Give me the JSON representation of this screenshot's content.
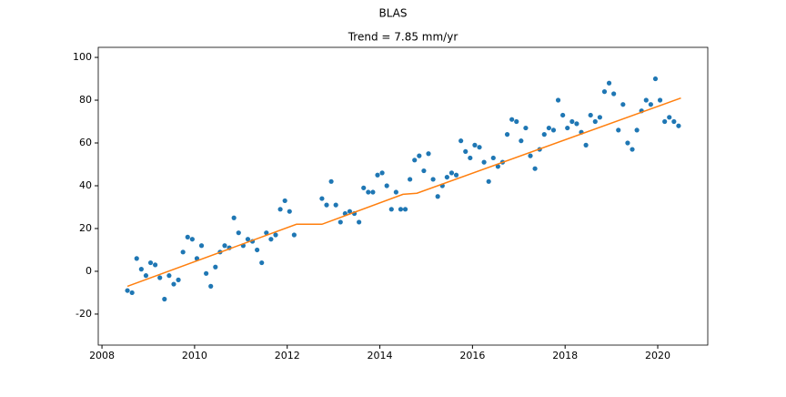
{
  "chart_data": {
    "type": "scatter",
    "title": "BLAS",
    "subtitle": "Trend = 7.85 mm/yr",
    "xlim": [
      2007.92,
      2021.08
    ],
    "ylim": [
      -34.5,
      104.7
    ],
    "xticks": [
      2008,
      2010,
      2012,
      2014,
      2016,
      2018,
      2020
    ],
    "yticks": [
      -20,
      0,
      20,
      40,
      60,
      80,
      100
    ],
    "series": [
      {
        "type": "scatter",
        "color": "#1f77b4",
        "x": [
          2008.55,
          2008.65,
          2008.75,
          2008.85,
          2008.95,
          2009.05,
          2009.15,
          2009.25,
          2009.35,
          2009.45,
          2009.55,
          2009.65,
          2009.75,
          2009.85,
          2009.95,
          2010.05,
          2010.15,
          2010.25,
          2010.35,
          2010.45,
          2010.55,
          2010.65,
          2010.75,
          2010.85,
          2010.95,
          2011.05,
          2011.15,
          2011.25,
          2011.35,
          2011.45,
          2011.55,
          2011.65,
          2011.75,
          2011.85,
          2011.95,
          2012.05,
          2012.15,
          2012.75,
          2012.85,
          2012.95,
          2013.05,
          2013.15,
          2013.25,
          2013.35,
          2013.45,
          2013.55,
          2013.65,
          2013.75,
          2013.85,
          2013.95,
          2014.05,
          2014.15,
          2014.25,
          2014.35,
          2014.45,
          2014.55,
          2014.65,
          2014.75,
          2014.85,
          2014.95,
          2015.05,
          2015.15,
          2015.25,
          2015.35,
          2015.45,
          2015.55,
          2015.65,
          2015.75,
          2015.85,
          2015.95,
          2016.05,
          2016.15,
          2016.25,
          2016.35,
          2016.45,
          2016.55,
          2016.65,
          2016.75,
          2016.85,
          2016.95,
          2017.05,
          2017.15,
          2017.25,
          2017.35,
          2017.45,
          2017.55,
          2017.65,
          2017.75,
          2017.85,
          2017.95,
          2018.05,
          2018.15,
          2018.25,
          2018.35,
          2018.45,
          2018.55,
          2018.65,
          2018.75,
          2018.85,
          2018.95,
          2019.05,
          2019.15,
          2019.25,
          2019.35,
          2019.45,
          2019.55,
          2019.65,
          2019.75,
          2019.85,
          2019.95,
          2020.05,
          2020.15,
          2020.25,
          2020.35,
          2020.45
        ],
        "values": [
          -9,
          -10,
          6,
          1,
          -2,
          4,
          3,
          -3,
          -13,
          -2,
          -6,
          -4,
          9,
          16,
          15,
          6,
          12,
          -1,
          -7,
          2,
          9,
          12,
          11,
          25,
          18,
          12,
          15,
          14,
          10,
          4,
          18,
          15,
          17,
          29,
          33,
          28,
          17,
          34,
          31,
          42,
          31,
          23,
          27,
          28,
          27,
          23,
          39,
          37,
          37,
          45,
          46,
          40,
          29,
          37,
          29,
          29,
          43,
          52,
          54,
          47,
          55,
          43,
          35,
          40,
          44,
          46,
          45,
          61,
          56,
          53,
          59,
          58,
          51,
          42,
          53,
          49,
          51,
          64,
          71,
          70,
          61,
          67,
          54,
          48,
          57,
          64,
          67,
          66,
          80,
          73,
          67,
          70,
          69,
          65,
          59,
          73,
          70,
          72,
          84,
          88,
          83,
          66,
          78,
          60,
          57,
          66,
          75,
          80,
          78,
          90,
          80,
          70,
          72,
          70,
          68
        ]
      },
      {
        "type": "line",
        "color": "#ff7f0e",
        "x": [
          2008.55,
          2012.2,
          2012.75,
          2014.5,
          2014.8,
          2020.5
        ],
        "values": [
          -7,
          22,
          22,
          36,
          36.5,
          81
        ]
      }
    ]
  }
}
